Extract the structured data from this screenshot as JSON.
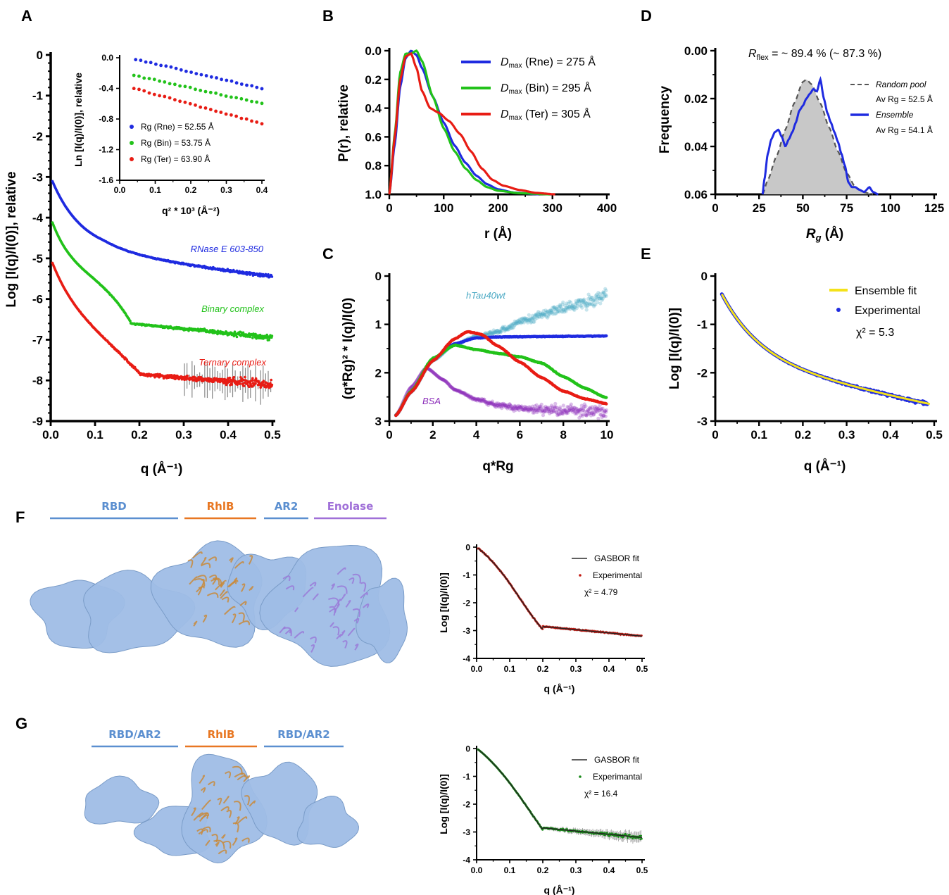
{
  "panels": [
    "A",
    "B",
    "C",
    "D",
    "E",
    "F",
    "G"
  ],
  "colors": {
    "blue": "#1f2be0",
    "green": "#22c21a",
    "red": "#e81c14",
    "cyan": "#4aa9c4",
    "purple": "#8a2bb8",
    "yellow": "#f4e21a",
    "gray": "#c8c8c8",
    "domBlue": "#5b8fd0",
    "domOrange": "#e87722",
    "domPurple": "#a070d8",
    "darkred": "#c21a12",
    "darkgreen": "#1a8a1a"
  },
  "chart_data": [
    {
      "id": "A",
      "type": "line",
      "xlabel": "q (Å⁻¹)",
      "ylabel": "Log [I(q)/I(0)], relative",
      "xlim": [
        0,
        0.5
      ],
      "ylim": [
        -9,
        0
      ],
      "xticks": [
        "0.0",
        "0.1",
        "0.2",
        "0.3",
        "0.4",
        "0.5"
      ],
      "yticks": [
        "0",
        "-1",
        "-2",
        "-3",
        "-4",
        "-5",
        "-6",
        "-7",
        "-8",
        "-9"
      ],
      "series": [
        {
          "name": "RNase E 603-850",
          "start": -3.0,
          "mid": -4.9,
          "end": -5.45
        },
        {
          "name": "Binary complex",
          "start": -4.0,
          "mid": -6.6,
          "end": -6.95
        },
        {
          "name": "Ternary complex",
          "start": -5.0,
          "mid": -7.85,
          "end": -8.1
        }
      ]
    },
    {
      "id": "A-inset",
      "type": "scatter",
      "xlabel": "q² * 10³ (Å⁻²)",
      "ylabel": "Ln [I(q)/I(0)], relative",
      "xlim": [
        0,
        0.4
      ],
      "ylim": [
        -1.6,
        0.0
      ],
      "xticks": [
        "0.0",
        "0.1",
        "0.2",
        "0.3",
        "0.4"
      ],
      "yticks": [
        "0.0",
        "-0.4",
        "-0.8",
        "-1.2",
        "-1.6"
      ],
      "series": [
        {
          "name": "Rg (Rne) = 52.55 Å",
          "x0": 0.045,
          "y0": -0.02,
          "x1": 0.4,
          "y1": -0.4
        },
        {
          "name": "Rg (Bin) = 53.75 Å",
          "x0": 0.04,
          "y0": -0.23,
          "x1": 0.4,
          "y1": -0.6
        },
        {
          "name": "Rg (Ter) = 63.90 Å",
          "x0": 0.04,
          "y0": -0.4,
          "x1": 0.4,
          "y1": -0.86
        }
      ]
    },
    {
      "id": "B",
      "type": "line",
      "xlabel": "r (Å)",
      "ylabel": "P(r), relative",
      "xlim": [
        0,
        400
      ],
      "ylim": [
        0,
        1.0
      ],
      "xticks": [
        "0",
        "100",
        "200",
        "300",
        "400"
      ],
      "yticks": [
        "0.0",
        "0.2",
        "0.4",
        "0.6",
        "0.8",
        "1.0"
      ],
      "series": [
        {
          "name": "Dmax (Rne) = 275 Å",
          "points": [
            [
              0,
              0
            ],
            [
              10,
              0.35
            ],
            [
              20,
              0.75
            ],
            [
              30,
              0.95
            ],
            [
              40,
              1.0
            ],
            [
              50,
              0.97
            ],
            [
              60,
              0.88
            ],
            [
              80,
              0.68
            ],
            [
              100,
              0.5
            ],
            [
              120,
              0.34
            ],
            [
              140,
              0.22
            ],
            [
              160,
              0.13
            ],
            [
              180,
              0.07
            ],
            [
              200,
              0.035
            ],
            [
              230,
              0.012
            ],
            [
              275,
              0
            ]
          ]
        },
        {
          "name": "Dmax (Bin) = 295 Å",
          "points": [
            [
              0,
              0
            ],
            [
              10,
              0.42
            ],
            [
              20,
              0.85
            ],
            [
              30,
              0.98
            ],
            [
              40,
              0.98
            ],
            [
              50,
              1.0
            ],
            [
              60,
              0.93
            ],
            [
              80,
              0.68
            ],
            [
              100,
              0.46
            ],
            [
              120,
              0.3
            ],
            [
              140,
              0.18
            ],
            [
              160,
              0.1
            ],
            [
              180,
              0.05
            ],
            [
              200,
              0.025
            ],
            [
              240,
              0.008
            ],
            [
              295,
              0
            ]
          ]
        },
        {
          "name": "Dmax (Ter) = 305 Å",
          "points": [
            [
              0,
              0
            ],
            [
              10,
              0.4
            ],
            [
              20,
              0.8
            ],
            [
              30,
              0.96
            ],
            [
              40,
              0.98
            ],
            [
              50,
              0.88
            ],
            [
              60,
              0.72
            ],
            [
              75,
              0.6
            ],
            [
              90,
              0.57
            ],
            [
              110,
              0.51
            ],
            [
              130,
              0.42
            ],
            [
              150,
              0.3
            ],
            [
              170,
              0.18
            ],
            [
              190,
              0.1
            ],
            [
              210,
              0.06
            ],
            [
              240,
              0.03
            ],
            [
              270,
              0.01
            ],
            [
              305,
              0
            ]
          ]
        }
      ]
    },
    {
      "id": "C",
      "type": "scatter",
      "xlabel": "q*Rg",
      "ylabel": "(q*Rg)² * I(q)/I(0)",
      "xlim": [
        0,
        10
      ],
      "ylim": [
        0,
        3
      ],
      "xticks": [
        "0",
        "2",
        "4",
        "6",
        "8",
        "10"
      ],
      "yticks": [
        "0",
        "1",
        "2",
        "3"
      ],
      "annotations": [
        "hTau40wt",
        "BSA"
      ],
      "series": [
        {
          "name": "RNase E",
          "points": [
            [
              0.3,
              0.12
            ],
            [
              1,
              0.6
            ],
            [
              2,
              1.28
            ],
            [
              3,
              1.6
            ],
            [
              4,
              1.72
            ],
            [
              5,
              1.74
            ],
            [
              7,
              1.75
            ],
            [
              10,
              1.76
            ]
          ]
        },
        {
          "name": "Binary",
          "points": [
            [
              0.3,
              0.12
            ],
            [
              1,
              0.62
            ],
            [
              2,
              1.3
            ],
            [
              3,
              1.57
            ],
            [
              4,
              1.48
            ],
            [
              5,
              1.4
            ],
            [
              6,
              1.33
            ],
            [
              7,
              1.2
            ],
            [
              8,
              0.92
            ],
            [
              9,
              0.68
            ],
            [
              10,
              0.48
            ]
          ]
        },
        {
          "name": "Ternary",
          "points": [
            [
              0.3,
              0.12
            ],
            [
              1,
              0.6
            ],
            [
              2,
              1.25
            ],
            [
              3,
              1.7
            ],
            [
              3.6,
              1.85
            ],
            [
              4.2,
              1.8
            ],
            [
              5,
              1.55
            ],
            [
              6,
              1.22
            ],
            [
              7,
              0.9
            ],
            [
              8,
              0.62
            ],
            [
              9,
              0.46
            ],
            [
              10,
              0.36
            ]
          ]
        },
        {
          "name": "hTau40wt",
          "points": [
            [
              0.3,
              0.12
            ],
            [
              1,
              0.6
            ],
            [
              2,
              1.25
            ],
            [
              3,
              1.58
            ],
            [
              4,
              1.75
            ],
            [
              5,
              1.85
            ],
            [
              6,
              2.05
            ],
            [
              7,
              2.2
            ],
            [
              8,
              2.35
            ],
            [
              9,
              2.45
            ],
            [
              10,
              2.6
            ]
          ]
        },
        {
          "name": "BSA",
          "points": [
            [
              0.3,
              0.12
            ],
            [
              1,
              0.7
            ],
            [
              1.7,
              1.1
            ],
            [
              2.5,
              0.85
            ],
            [
              3,
              0.65
            ],
            [
              4,
              0.45
            ],
            [
              5,
              0.33
            ],
            [
              6,
              0.27
            ],
            [
              7,
              0.24
            ],
            [
              8,
              0.22
            ],
            [
              9,
              0.2
            ],
            [
              10,
              0.2
            ]
          ]
        }
      ]
    },
    {
      "id": "D",
      "type": "area",
      "title_prefix": "R",
      "title_sub": "flex",
      "title_rest": " = ~ 89.4 % (~ 87.3 %)",
      "xlabel": "Rg (Å)",
      "ylabel": "Frequency",
      "xlim": [
        0,
        125
      ],
      "ylim": [
        0,
        0.06
      ],
      "xticks": [
        "0",
        "25",
        "50",
        "75",
        "100",
        "125"
      ],
      "yticks": [
        "0.00",
        "0.02",
        "0.04",
        "0.06"
      ],
      "series": [
        {
          "name": "Random pool",
          "sub": "Av Rg = 52.5 Å",
          "points": [
            [
              27,
              0
            ],
            [
              30,
              0.006
            ],
            [
              35,
              0.016
            ],
            [
              40,
              0.027
            ],
            [
              45,
              0.038
            ],
            [
              50,
              0.047
            ],
            [
              52,
              0.048
            ],
            [
              55,
              0.046
            ],
            [
              60,
              0.038
            ],
            [
              65,
              0.028
            ],
            [
              70,
              0.018
            ],
            [
              75,
              0.009
            ],
            [
              80,
              0.003
            ],
            [
              85,
              0.0008
            ],
            [
              90,
              0
            ]
          ]
        },
        {
          "name": "Ensemble",
          "sub": "Av Rg = 54.1 Å",
          "points": [
            [
              27,
              0
            ],
            [
              28,
              0.006
            ],
            [
              30,
              0.017
            ],
            [
              32,
              0.023
            ],
            [
              34,
              0.026
            ],
            [
              36,
              0.027
            ],
            [
              38,
              0.024
            ],
            [
              40,
              0.02
            ],
            [
              42,
              0.023
            ],
            [
              44,
              0.026
            ],
            [
              46,
              0.03
            ],
            [
              48,
              0.035
            ],
            [
              50,
              0.037
            ],
            [
              52,
              0.04
            ],
            [
              54,
              0.042
            ],
            [
              56,
              0.044
            ],
            [
              58,
              0.043
            ],
            [
              60,
              0.048
            ],
            [
              62,
              0.04
            ],
            [
              64,
              0.034
            ],
            [
              66,
              0.03
            ],
            [
              68,
              0.026
            ],
            [
              70,
              0.022
            ],
            [
              72,
              0.017
            ],
            [
              74,
              0.012
            ],
            [
              76,
              0.005
            ],
            [
              78,
              0.003
            ],
            [
              80,
              0.003
            ],
            [
              82,
              0.002
            ],
            [
              85,
              0.001
            ],
            [
              88,
              0.003
            ],
            [
              90,
              0.001
            ],
            [
              93,
              0
            ]
          ]
        }
      ]
    },
    {
      "id": "E",
      "type": "line",
      "xlabel": "q (Å⁻¹)",
      "ylabel": "Log [I(q)/I(0)]",
      "xlim": [
        0,
        0.5
      ],
      "ylim": [
        -3.2,
        0
      ],
      "xticks": [
        "0",
        "0.1",
        "0.2",
        "0.3",
        "0.4",
        "0.5"
      ],
      "yticks": [
        "0",
        "-1",
        "-2",
        "-3"
      ],
      "series": [
        {
          "name": "Ensemble fit"
        },
        {
          "name": "Experimental"
        }
      ],
      "chi": "χ",
      "chi_rest": "² = 5.3"
    },
    {
      "id": "F",
      "type": "line",
      "xlabel": "q (Å⁻¹)",
      "ylabel": "Log [I(q)/I(0)]",
      "xlim": [
        0,
        0.5
      ],
      "ylim": [
        -4,
        0
      ],
      "xticks": [
        "0.0",
        "0.1",
        "0.2",
        "0.3",
        "0.4",
        "0.5"
      ],
      "yticks": [
        "0",
        "-1",
        "-2",
        "-3",
        "-4"
      ],
      "series": [
        {
          "name": "GASBOR fit"
        },
        {
          "name": "Experimental"
        }
      ],
      "chi": "χ² = 4.79",
      "domains": [
        "RBD",
        "RhlB",
        "AR2",
        "Enolase"
      ]
    },
    {
      "id": "G",
      "type": "line",
      "xlabel": "q (Å⁻¹)",
      "ylabel": "Log [I(q)/I(0)]",
      "xlim": [
        0,
        0.5
      ],
      "ylim": [
        -4,
        0
      ],
      "xticks": [
        "0.0",
        "0.1",
        "0.2",
        "0.3",
        "0.4",
        "0.5"
      ],
      "yticks": [
        "0",
        "-1",
        "-2",
        "-3",
        "-4"
      ],
      "series": [
        {
          "name": "GASBOR fit"
        },
        {
          "name": "Experimantal"
        }
      ],
      "chi": "χ² = 16.4",
      "domains": [
        "RBD/AR2",
        "RhlB",
        "RBD/AR2"
      ]
    }
  ]
}
